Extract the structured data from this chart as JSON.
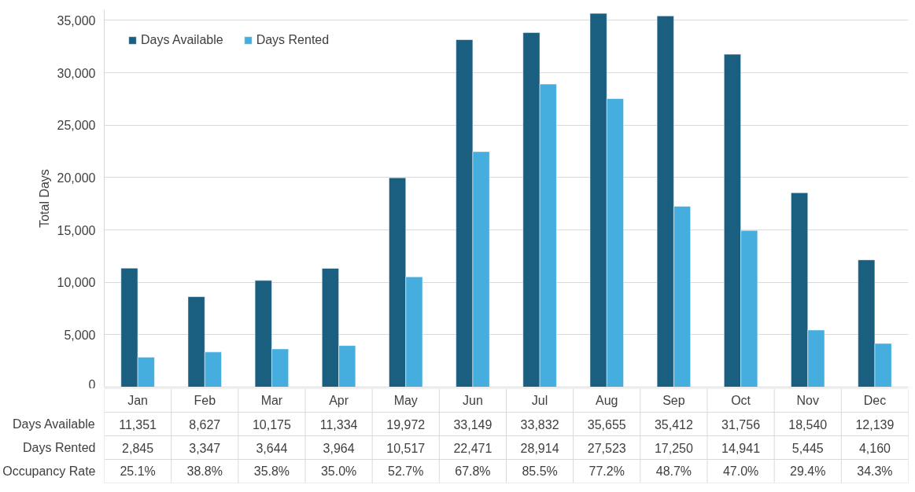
{
  "chart_data": {
    "type": "bar",
    "ylabel": "Total Days",
    "categories": [
      "Jan",
      "Feb",
      "Mar",
      "Apr",
      "May",
      "Jun",
      "Jul",
      "Aug",
      "Sep",
      "Oct",
      "Nov",
      "Dec"
    ],
    "series": [
      {
        "name": "Days Available",
        "color": "#1a5e80",
        "values": [
          11351,
          8627,
          10175,
          11334,
          19972,
          33149,
          33832,
          35655,
          35412,
          31756,
          18540,
          12139
        ],
        "value_labels": [
          "11,351",
          "8,627",
          "10,175",
          "11,334",
          "19,972",
          "33,149",
          "33,832",
          "35,655",
          "35,412",
          "31,756",
          "18,540",
          "12,139"
        ]
      },
      {
        "name": "Days Rented",
        "color": "#45aedf",
        "values": [
          2845,
          3347,
          3644,
          3964,
          10517,
          22471,
          28914,
          27523,
          17250,
          14941,
          5445,
          4160
        ],
        "value_labels": [
          "2,845",
          "3,347",
          "3,644",
          "3,964",
          "10,517",
          "22,471",
          "28,914",
          "27,523",
          "17,250",
          "14,941",
          "5,445",
          "4,160"
        ]
      }
    ],
    "annotations": [
      "Occupancy Rate",
      "25.1%",
      "38.8%",
      "35.8%",
      "35.0%",
      "52.7%",
      "67.8%",
      "85.5%",
      "77.2%",
      "48.7%",
      "47.0%",
      "29.4%",
      "34.3%"
    ],
    "ylim": [
      0,
      36000
    ],
    "yticks": [
      {
        "value": 0,
        "label": "0"
      },
      {
        "value": 5000,
        "label": "5,000"
      },
      {
        "value": 10000,
        "label": "10,000"
      },
      {
        "value": 15000,
        "label": "15,000"
      },
      {
        "value": 20000,
        "label": "20,000"
      },
      {
        "value": 25000,
        "label": "25,000"
      },
      {
        "value": 30000,
        "label": "30,000"
      },
      {
        "value": 35000,
        "label": "35,000"
      }
    ],
    "grid": "y",
    "legend": "top left"
  }
}
